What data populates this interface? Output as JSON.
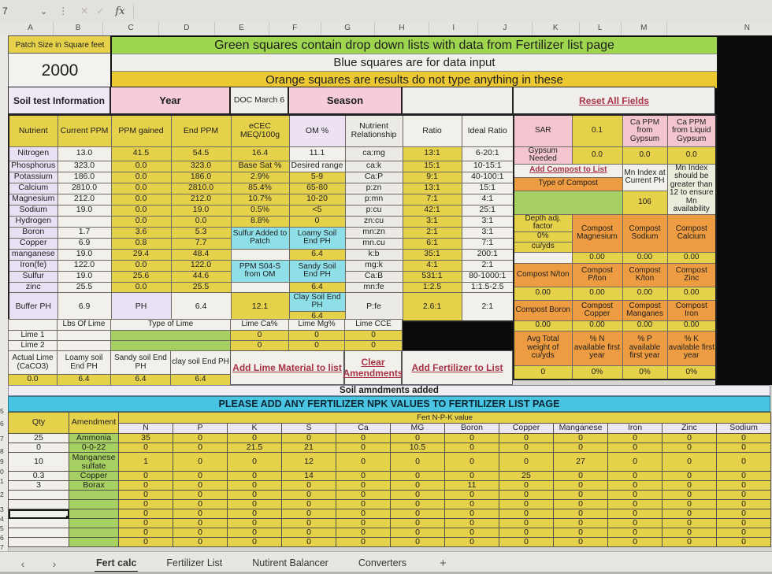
{
  "colors": {
    "yellow": "#e6d14b",
    "green": "#a6d061",
    "orange": "#ee9c41",
    "pink": "#f3c5ce",
    "cyan": "#49c5e3",
    "link_red": "#a83246"
  },
  "toolbar": {
    "name_box": "7",
    "chevron": "⌄",
    "dots": "⋮",
    "cancel": "✕",
    "confirm": "✓",
    "fx_label": "fx"
  },
  "column_headers": [
    "A",
    "B",
    "C",
    "D",
    "E",
    "F",
    "G",
    "H",
    "I",
    "J",
    "K",
    "L",
    "M",
    "N"
  ],
  "row_gutter": [
    "5",
    "6",
    "7",
    "8",
    "9",
    "0",
    "1",
    "2",
    "3",
    "4",
    "5",
    "6",
    "7",
    "8",
    "9",
    "40"
  ],
  "top": {
    "patch_label": "Patch Size in Square feet",
    "patch_value": "2000",
    "banner_green": "Green squares contain drop down lists with data from Fertilizer list page",
    "banner_blue": "Blue squares are for data input",
    "banner_orange": "Orange squares are results do not type anything in these"
  },
  "sections": {
    "soil_test": "Soil test Information",
    "year": "Year",
    "doc_date": "DOC March 6",
    "season": "Season",
    "reset_link": "Reset All Fields"
  },
  "soil": {
    "rows": [
      [
        {
          "t": "Nutrient",
          "k": "y"
        },
        {
          "t": "Current PPM",
          "k": "y"
        },
        {
          "t": "PPM gained",
          "k": "y"
        },
        {
          "t": "End PPM",
          "k": "y"
        },
        {
          "t": "eCEC MEQ/100g",
          "k": "y"
        },
        {
          "t": "OM %",
          "k": "l"
        },
        {
          "t": "Nutrient Relationship",
          "k": "gr"
        },
        {
          "t": "Ratio",
          "k": "w"
        },
        {
          "t": "Ideal Ratio",
          "k": "w"
        }
      ],
      [
        "Nitrogen",
        "13.0",
        "41.5",
        "54.5",
        "16.4",
        {
          "t": "11.1",
          "k": "w"
        },
        "ca:mg",
        "13:1",
        "6-20:1"
      ],
      [
        "Phosphorus",
        "323.0",
        "0.0",
        "323.0",
        "Base Sat %",
        {
          "t": "Desired range",
          "k": "w"
        },
        "ca:k",
        "15:1",
        "10-15:1"
      ],
      [
        "Potassium",
        "186.0",
        "0.0",
        "186.0",
        "2.9%",
        "5-9",
        "Ca:P",
        "9:1",
        "40-100:1"
      ],
      [
        "Calcium",
        "2810.0",
        "0.0",
        "2810.0",
        "85.4%",
        "65-80",
        "p:zn",
        "13:1",
        "15:1"
      ],
      [
        "Magnesium",
        "212.0",
        "0.0",
        "212.0",
        "10.7%",
        "10-20",
        "p:mn",
        "7:1",
        "4:1"
      ],
      [
        "Sodium",
        "19.0",
        "0.0",
        "19.0",
        "0.5%",
        "<5",
        "p:cu",
        "42:1",
        "25:1"
      ],
      [
        "Hydrogen",
        "",
        "0.0",
        "0.0",
        "8.8%",
        "0",
        "zn:cu",
        "3:1",
        "3:1"
      ],
      [
        "Boron",
        "1.7",
        "3.6",
        "5.3",
        {
          "t": "Sulfur Added to Patch",
          "k": "c",
          "r": 2
        },
        {
          "t": "Loamy Soil End PH",
          "k": "c",
          "r": 2
        },
        "mn:zn",
        "2:1",
        "3:1"
      ],
      [
        "Copper",
        "6.9",
        "0.8",
        "7.7",
        ".",
        ".",
        "mn.cu",
        "6:1",
        "7:1"
      ],
      [
        "manganese",
        "19.0",
        "29.4",
        "48.4",
        {
          "t": "",
          "k": "w"
        },
        "6.4",
        "k:b",
        "35:1",
        "200:1"
      ],
      [
        "Iron(fe)",
        "122.0",
        "0.0",
        "122.0",
        {
          "t": "PPM S04-S from OM",
          "k": "c",
          "r": 2
        },
        {
          "t": "Sandy Soil End PH",
          "k": "c",
          "r": 2
        },
        "mg:k",
        "4:1",
        "2:1"
      ],
      [
        "Sulfur",
        "19.0",
        "25.6",
        "44.6",
        ".",
        ".",
        "Ca:B",
        "531:1",
        "80-1000:1"
      ],
      [
        "zinc",
        "25.5",
        "0.0",
        "25.5",
        {
          "t": "",
          "k": "w"
        },
        "6.4",
        "mn:fe",
        "1:2.5",
        "1:1.5-2.5"
      ],
      [
        {
          "t": "Buffer PH",
          "r": 2
        },
        {
          "t": "6.9",
          "r": 2
        },
        {
          "t": "PH",
          "k": "lbl",
          "r": 2
        },
        {
          "t": "6.4",
          "k": "w",
          "r": 2
        },
        {
          "t": "12.1",
          "r": 2
        },
        {
          "t": "Clay Soil End PH",
          "k": "c"
        },
        {
          "t": "P:fe",
          "r": 2
        },
        {
          "t": "2.6:1",
          "r": 2
        },
        {
          "t": "2:1",
          "r": 2
        }
      ],
      [
        ".",
        ".",
        ".",
        ".",
        ".",
        "6.4",
        ".",
        ".",
        "."
      ]
    ]
  },
  "right_panel": {
    "rows": [
      [
        {
          "t": "SAR",
          "k": "p"
        },
        {
          "t": "0.1",
          "k": "y"
        },
        {
          "t": "Ca PPM from Gypsum",
          "k": "p"
        },
        {
          "t": "Ca PPM from Liquid Gypsum",
          "k": "p"
        }
      ],
      [
        {
          "t": "Gypsum Needed",
          "k": "p"
        },
        {
          "t": "0.0",
          "k": "y"
        },
        {
          "t": "0.0",
          "k": "y"
        },
        {
          "t": "0.0",
          "k": "y"
        }
      ],
      [
        {
          "t": "Add Compost to List",
          "k": "link",
          "c": 2,
          "n": "add-compost-link"
        },
        {
          "t": "Mn Index at Current PH",
          "k": "w",
          "r": 2
        },
        {
          "t": "Mn Index should be greater than 12 to ensure Mn availability",
          "k": "lg",
          "r": 3
        }
      ],
      [
        {
          "t": "Type of Compost",
          "k": "o",
          "c": 2
        },
        ".",
        "."
      ],
      [
        {
          "t": "",
          "k": "g",
          "c": 2,
          "n": "compost-dropdown-cell"
        },
        {
          "t": "106",
          "k": "y"
        },
        "."
      ],
      [
        {
          "t": "Depth adj. factor",
          "k": "y"
        },
        {
          "t": "Compost Magnesium",
          "k": "o",
          "r": 3
        },
        {
          "t": "Compost Sodium",
          "k": "o",
          "r": 3
        },
        {
          "t": "Compost Calcium",
          "k": "o",
          "r": 3
        }
      ],
      [
        {
          "t": "0%",
          "k": "y"
        },
        ".",
        ".",
        "."
      ],
      [
        {
          "t": "cu/yds",
          "k": "y"
        },
        ".",
        ".",
        "."
      ],
      [
        {
          "t": "",
          "k": "w"
        },
        {
          "t": "0.00",
          "k": "y"
        },
        {
          "t": "0.00",
          "k": "y"
        },
        {
          "t": "0.00",
          "k": "y"
        }
      ],
      [
        {
          "t": "Compost N/ton",
          "k": "o"
        },
        {
          "t": "Compost P/ton",
          "k": "o"
        },
        {
          "t": "Compost K/ton",
          "k": "o"
        },
        {
          "t": "Compost Zinc",
          "k": "o"
        }
      ],
      [
        {
          "t": "0.00",
          "k": "y"
        },
        {
          "t": "0.00",
          "k": "y"
        },
        {
          "t": "0.00",
          "k": "y"
        },
        {
          "t": "0.00",
          "k": "y"
        }
      ],
      [
        {
          "t": "Compost Boron",
          "k": "o"
        },
        {
          "t": "Compost Copper",
          "k": "o"
        },
        {
          "t": "Compost Manganes",
          "k": "o"
        },
        {
          "t": "Compost Iron",
          "k": "o"
        }
      ],
      [
        {
          "t": "0.00",
          "k": "y"
        },
        {
          "t": "0.00",
          "k": "y"
        },
        {
          "t": "0.00",
          "k": "y"
        },
        {
          "t": "0.00",
          "k": "y"
        }
      ],
      [
        {
          "t": "Avg Total weight of cu/yds",
          "k": "o"
        },
        {
          "t": "% N available first year",
          "k": "o"
        },
        {
          "t": "% P available first year",
          "k": "o"
        },
        {
          "t": "% K available first year",
          "k": "o"
        }
      ],
      [
        {
          "t": "0",
          "k": "y"
        },
        {
          "t": "0%",
          "k": "y"
        },
        {
          "t": "0%",
          "k": "y"
        },
        {
          "t": "0%",
          "k": "y"
        }
      ]
    ]
  },
  "lime": {
    "rows": [
      [
        {
          "t": "",
          "k": "w"
        },
        {
          "t": "Lbs Of Lime",
          "k": "w"
        },
        {
          "t": "Type of Lime",
          "k": "w",
          "c": 2
        },
        {
          "t": "Lime Ca%",
          "k": "w"
        },
        {
          "t": "Lime Mg%",
          "k": "w"
        },
        {
          "t": "Lime CCE",
          "k": "w"
        }
      ],
      [
        {
          "t": "Lime 1",
          "k": "w"
        },
        {
          "t": "",
          "k": "w"
        },
        {
          "t": "",
          "k": "g",
          "c": 2,
          "n": "lime1-dropdown-cell"
        },
        {
          "t": "0",
          "k": "y"
        },
        {
          "t": "0",
          "k": "y"
        },
        {
          "t": "0",
          "k": "y"
        }
      ],
      [
        {
          "t": "Lime 2",
          "k": "w"
        },
        {
          "t": "",
          "k": "w"
        },
        {
          "t": "",
          "k": "g",
          "c": 2,
          "n": "lime2-dropdown-cell"
        },
        {
          "t": "0",
          "k": "y"
        },
        {
          "t": "0",
          "k": "y"
        },
        {
          "t": "0",
          "k": "y"
        }
      ],
      [
        {
          "t": "Actual Lime (CaCO3)",
          "k": "w"
        },
        {
          "t": "Loamy soil End PH",
          "k": "w"
        },
        {
          "t": "Sandy soil End PH",
          "k": "w"
        },
        {
          "t": "clay soil End PH",
          "k": "w"
        }
      ],
      [
        {
          "t": "0.0",
          "k": "y"
        },
        {
          "t": "6.4",
          "k": "y"
        },
        {
          "t": "6.4",
          "k": "y"
        },
        {
          "t": "6.4",
          "k": "y"
        }
      ]
    ],
    "links": {
      "add_lime": "Add Lime Material to list",
      "clear": "Clear Amendments",
      "add_fert": "Add Fertilizer to List"
    }
  },
  "strips": {
    "soil_amendments": "Soil amndments added",
    "fert_banner": "PLEASE ADD ANY FERTILIZER NPK VALUES TO FERTILIZER LIST PAGE"
  },
  "fert": {
    "rows": [
      [
        {
          "t": "Qty",
          "k": "y",
          "r": 2
        },
        {
          "t": "Amendment",
          "k": "y",
          "r": 2
        },
        {
          "t": "Fert N-P-K value",
          "k": "ynpk",
          "c": 12
        }
      ],
      [
        {
          "t": "N",
          "k": "hdr"
        },
        {
          "t": "P",
          "k": "hdr"
        },
        {
          "t": "K",
          "k": "hdr"
        },
        {
          "t": "S",
          "k": "hdr"
        },
        {
          "t": "Ca",
          "k": "hdr"
        },
        {
          "t": "MG",
          "k": "hdr"
        },
        {
          "t": "Boron",
          "k": "hdr"
        },
        {
          "t": "Copper",
          "k": "hdr"
        },
        {
          "t": "Manganese",
          "k": "hdr"
        },
        {
          "t": "Iron",
          "k": "hdr"
        },
        {
          "t": "Zinc",
          "k": "hdr"
        },
        {
          "t": "Sodium",
          "k": "hdr"
        }
      ],
      [
        "25",
        "Ammonia",
        "35",
        "0",
        "0",
        "0",
        "0",
        "0",
        "0",
        "0",
        "0",
        "0",
        "0",
        "0"
      ],
      [
        "0",
        "0-0-22",
        "0",
        "0",
        "21.5",
        "21",
        "0",
        "10.5",
        "0",
        "0",
        "0",
        "0",
        "0",
        "0"
      ],
      [
        "10",
        "Manganese sulfate",
        "1",
        "0",
        "0",
        "12",
        "0",
        "0",
        "0",
        "0",
        "27",
        "0",
        "0",
        "0"
      ],
      [
        "0.3",
        "Copper",
        "0",
        "0",
        "0",
        "14",
        "0",
        "0",
        "0",
        "25",
        "0",
        "0",
        "0",
        "0"
      ],
      [
        "3",
        "Borax",
        "0",
        "0",
        "0",
        "0",
        "0",
        "0",
        "11",
        "0",
        "0",
        "0",
        "0",
        "0"
      ],
      [
        "",
        "",
        "0",
        "0",
        "0",
        "0",
        "0",
        "0",
        "0",
        "0",
        "0",
        "0",
        "0",
        "0"
      ],
      [
        "",
        "",
        "0",
        "0",
        "0",
        "0",
        "0",
        "0",
        "0",
        "0",
        "0",
        "0",
        "0",
        "0"
      ],
      [
        {
          "t": "",
          "k": "sel",
          "n": "selected-cell"
        },
        "",
        "0",
        "0",
        "0",
        "0",
        "0",
        "0",
        "0",
        "0",
        "0",
        "0",
        "0",
        "0"
      ],
      [
        "",
        "",
        "0",
        "0",
        "0",
        "0",
        "0",
        "0",
        "0",
        "0",
        "0",
        "0",
        "0",
        "0"
      ],
      [
        "",
        "",
        "0",
        "0",
        "0",
        "0",
        "0",
        "0",
        "0",
        "0",
        "0",
        "0",
        "0",
        "0"
      ],
      [
        "",
        "",
        "0",
        "0",
        "0",
        "0",
        "0",
        "0",
        "0",
        "0",
        "0",
        "0",
        "0",
        "0"
      ]
    ]
  },
  "tabs": {
    "prev": "‹",
    "next": "›",
    "items": [
      "Fert calc",
      "Fertilizer List",
      "Nutirent Balancer",
      "Converters"
    ],
    "add": "+"
  }
}
